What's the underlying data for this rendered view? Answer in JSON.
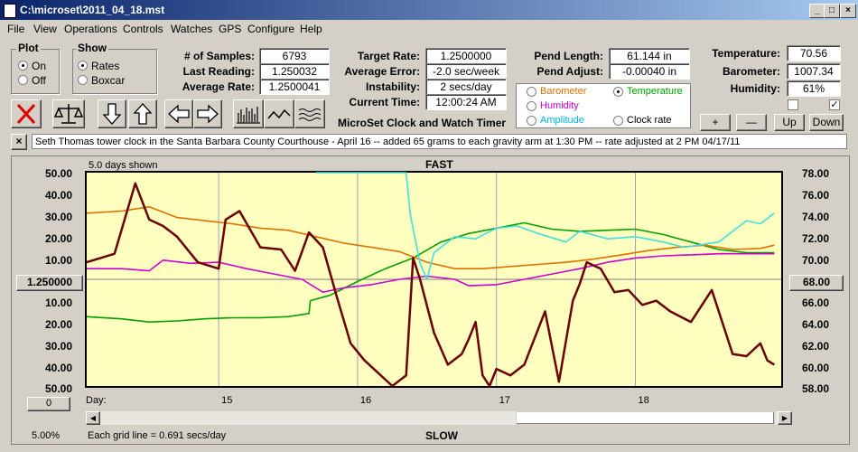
{
  "window": {
    "title": "C:\\microset\\2011_04_18.mst"
  },
  "menu": [
    "File",
    "View",
    "Operations",
    "Controls",
    "Watches",
    "GPS",
    "Configure",
    "Help"
  ],
  "plot_group": {
    "title": "Plot",
    "options": [
      "On",
      "Off"
    ],
    "selected": "On"
  },
  "show_group": {
    "title": "Show",
    "options": [
      "Rates",
      "Boxcar"
    ],
    "selected": "Rates"
  },
  "stats": {
    "samples_label": "# of Samples:",
    "samples": "6793",
    "last_reading_label": "Last Reading:",
    "last_reading": "1.250032",
    "average_rate_label": "Average Rate:",
    "average_rate": "1.2500041",
    "target_rate_label": "Target Rate:",
    "target_rate": "1.2500000",
    "average_error_label": "Average Error:",
    "average_error": "-2.0 sec/week",
    "instability_label": "Instability:",
    "instability": "2 secs/day",
    "current_time_label": "Current Time:",
    "current_time": "12:00:24 AM",
    "pend_length_label": "Pend Length:",
    "pend_length": "61.144 in",
    "pend_adjust_label": "Pend Adjust:",
    "pend_adjust": "-0.00040 in"
  },
  "env": {
    "temperature_label": "Temperature:",
    "temperature": "70.56",
    "barometer_label": "Barometer:",
    "barometer": "1007.34",
    "humidity_label": "Humidity:",
    "humidity": "61%"
  },
  "app_title": "MicroSet Clock and Watch Timer",
  "series_select": {
    "options": [
      {
        "label": "Barometer",
        "color": "#e07000",
        "selected": false
      },
      {
        "label": "Temperature",
        "color": "#00a000",
        "selected": true
      },
      {
        "label": "Humidity",
        "color": "#d000d0",
        "selected": false
      },
      {
        "label": "Amplitude",
        "color": "#00c8f0",
        "selected": false
      },
      {
        "label": "Clock rate",
        "color": "#000000",
        "selected": false
      }
    ]
  },
  "scale_buttons": {
    "plus": "+",
    "minus": "—",
    "up": "Up",
    "down": "Down"
  },
  "note": "Seth Thomas tower clock in the Santa Barbara County Courthouse - April 16 -- added 65 grams to each gravity arm at 1:30 PM -- rate adjusted at 2 PM 04/17/11",
  "note_close": "×",
  "chart_header": {
    "days_shown": "5.0 days shown",
    "top_label": "FAST",
    "bottom_label": "SLOW"
  },
  "left_center_value": "1.250000",
  "right_center_value": "68.00",
  "left_bottom_box": "0",
  "grid_info": "Each grid line = 0.691 secs/day",
  "zoom": "5.00%",
  "colors": {
    "rate": "#6b0000",
    "temperature": "#00a000",
    "barometer": "#e07000",
    "humidity": "#d000d0",
    "amplitude": "#40e0e0",
    "plot_bg": "#ffffc0"
  },
  "chart_data": {
    "type": "line",
    "x_label": "Day:",
    "x_ticks": [
      "15",
      "16",
      "17",
      "18"
    ],
    "y_left_ticks_top": [
      "50.00",
      "40.00",
      "30.00",
      "20.00",
      "10.00"
    ],
    "y_left_ticks_bottom": [
      "10.00",
      "20.00",
      "30.00",
      "40.00",
      "50.00"
    ],
    "y_right_ticks": [
      "78.00",
      "76.00",
      "74.00",
      "72.00",
      "70.00",
      "68.00",
      "66.00",
      "64.00",
      "62.00",
      "60.00",
      "58.00"
    ],
    "x_range": [
      14.05,
      19.05
    ],
    "y_left_range": [
      -50,
      50
    ],
    "y_right_range": [
      58,
      78
    ],
    "series": [
      {
        "name": "Clock rate",
        "color": "#6b0000",
        "axis": "left",
        "x": [
          14.05,
          14.25,
          14.4,
          14.5,
          14.6,
          14.7,
          14.85,
          15.0,
          15.05,
          15.15,
          15.3,
          15.45,
          15.55,
          15.65,
          15.75,
          15.85,
          15.95,
          16.05,
          16.15,
          16.25,
          16.35,
          16.4,
          16.45,
          16.55,
          16.65,
          16.75,
          16.8,
          16.85,
          16.9,
          16.95,
          17.0,
          17.1,
          17.2,
          17.35,
          17.45,
          17.55,
          17.6,
          17.65,
          17.75,
          17.85,
          17.95,
          18.05,
          18.15,
          18.25,
          18.4,
          18.55,
          18.7,
          18.8,
          18.9,
          18.95,
          19.0
        ],
        "y": [
          8,
          12,
          45,
          28,
          25,
          20,
          8,
          5,
          28,
          32,
          15,
          14,
          4,
          22,
          15,
          -8,
          -30,
          -38,
          -44,
          -50,
          -45,
          10,
          0,
          -25,
          -40,
          -35,
          -28,
          -20,
          -45,
          -50,
          -42,
          -45,
          -40,
          -15,
          -48,
          -10,
          -2,
          8,
          5,
          -6,
          -5,
          -12,
          -10,
          -15,
          -20,
          -5,
          -35,
          -36,
          -30,
          -38,
          -40
        ]
      },
      {
        "name": "Temperature",
        "color": "#00a000",
        "axis": "right",
        "x": [
          14.05,
          14.3,
          14.5,
          14.7,
          14.9,
          15.1,
          15.3,
          15.5,
          15.65,
          15.66,
          15.8,
          16.0,
          16.2,
          16.4,
          16.6,
          16.8,
          17.0,
          17.2,
          17.4,
          17.6,
          17.8,
          18.0,
          18.2,
          18.4,
          18.6,
          18.8,
          19.0
        ],
        "y": [
          64.5,
          64.3,
          64.0,
          64.1,
          64.3,
          64.4,
          64.4,
          64.5,
          64.8,
          66.0,
          66.5,
          67.8,
          69.0,
          70.0,
          71.5,
          72.3,
          72.8,
          73.3,
          72.7,
          72.5,
          72.6,
          72.7,
          72.2,
          71.5,
          70.8,
          70.5,
          70.5
        ]
      },
      {
        "name": "Barometer",
        "color": "#e07000",
        "axis": "right",
        "x": [
          14.05,
          14.3,
          14.5,
          14.7,
          14.9,
          15.1,
          15.3,
          15.5,
          15.7,
          15.9,
          16.1,
          16.3,
          16.5,
          16.7,
          16.9,
          17.1,
          17.3,
          17.5,
          17.7,
          17.9,
          18.1,
          18.3,
          18.5,
          18.7,
          18.9,
          19.0
        ],
        "y": [
          74.2,
          74.4,
          74.8,
          73.8,
          73.5,
          73.2,
          72.8,
          72.6,
          72.0,
          71.4,
          71.0,
          70.6,
          69.6,
          69.0,
          69.0,
          69.2,
          69.4,
          69.6,
          69.9,
          70.3,
          70.7,
          71.0,
          71.2,
          70.8,
          70.9,
          71.2
        ]
      },
      {
        "name": "Humidity",
        "color": "#d000d0",
        "axis": "right",
        "x": [
          14.05,
          14.3,
          14.5,
          14.6,
          14.8,
          15.0,
          15.2,
          15.4,
          15.6,
          15.75,
          15.9,
          16.1,
          16.3,
          16.5,
          16.7,
          16.8,
          17.0,
          17.2,
          17.4,
          17.6,
          17.8,
          18.0,
          18.2,
          18.4,
          18.6,
          18.8,
          19.0
        ],
        "y": [
          69.0,
          69.0,
          68.8,
          69.8,
          69.5,
          69.6,
          69.0,
          68.5,
          68.0,
          66.8,
          67.2,
          67.5,
          68.0,
          68.3,
          68.0,
          67.4,
          67.5,
          68.0,
          68.5,
          69.0,
          69.6,
          70.0,
          70.2,
          70.3,
          70.4,
          70.4,
          70.4
        ]
      },
      {
        "name": "Amplitude",
        "color": "#40e0e0",
        "axis": "right",
        "x": [
          15.7,
          16.35,
          16.38,
          16.45,
          16.5,
          16.55,
          16.7,
          16.85,
          17.0,
          17.15,
          17.3,
          17.5,
          17.6,
          17.8,
          18.0,
          18.2,
          18.35,
          18.5,
          18.6,
          18.8,
          18.9,
          19.0
        ],
        "y": [
          78,
          78,
          74.0,
          69.5,
          68.0,
          70.5,
          72.0,
          71.8,
          72.8,
          73.0,
          72.3,
          71.5,
          72.5,
          71.8,
          72.0,
          71.5,
          71.0,
          71.3,
          71.5,
          73.5,
          73.2,
          74.2
        ]
      }
    ]
  }
}
